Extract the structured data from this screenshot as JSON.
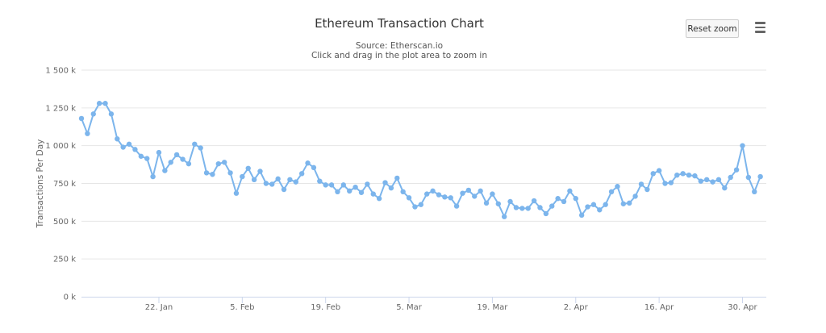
{
  "chart_data": {
    "type": "line",
    "title": "Ethereum Transaction Chart",
    "subtitle_source": "Source: Etherscan.io",
    "subtitle_hint": "Click and drag in the plot area to zoom in",
    "ylabel": "Transactions Per Day",
    "xlabel": "",
    "ylim": [
      0,
      1500000
    ],
    "yticks": [
      {
        "value": 0,
        "label": "0 k"
      },
      {
        "value": 250000,
        "label": "250 k"
      },
      {
        "value": 500000,
        "label": "500 k"
      },
      {
        "value": 750000,
        "label": "750 k"
      },
      {
        "value": 1000000,
        "label": "1 000 k"
      },
      {
        "value": 1250000,
        "label": "1 250 k"
      },
      {
        "value": 1500000,
        "label": "1 500 k"
      }
    ],
    "xlim": [
      "2018-01-09",
      "2018-05-04"
    ],
    "xticks": [
      {
        "date": "2018-01-22",
        "label": "22. Jan"
      },
      {
        "date": "2018-02-05",
        "label": "5. Feb"
      },
      {
        "date": "2018-02-19",
        "label": "19. Feb"
      },
      {
        "date": "2018-03-05",
        "label": "5. Mar"
      },
      {
        "date": "2018-03-19",
        "label": "19. Mar"
      },
      {
        "date": "2018-04-02",
        "label": "2. Apr"
      },
      {
        "date": "2018-04-16",
        "label": "16. Apr"
      },
      {
        "date": "2018-04-30",
        "label": "30. Apr"
      }
    ],
    "grid": true,
    "legend": "none",
    "series": [
      {
        "color": "#7cb5ec",
        "start_date": "2018-01-09",
        "values": [
          1180000,
          1080000,
          1210000,
          1280000,
          1280000,
          1210000,
          1045000,
          990000,
          1010000,
          975000,
          930000,
          915000,
          795000,
          955000,
          835000,
          890000,
          940000,
          910000,
          880000,
          1010000,
          985000,
          820000,
          810000,
          880000,
          890000,
          820000,
          685000,
          795000,
          850000,
          775000,
          830000,
          750000,
          745000,
          780000,
          710000,
          775000,
          760000,
          815000,
          885000,
          855000,
          765000,
          740000,
          740000,
          695000,
          740000,
          700000,
          725000,
          690000,
          745000,
          680000,
          650000,
          755000,
          720000,
          785000,
          695000,
          655000,
          595000,
          610000,
          680000,
          700000,
          675000,
          660000,
          655000,
          600000,
          685000,
          705000,
          665000,
          700000,
          620000,
          680000,
          615000,
          530000,
          630000,
          590000,
          585000,
          585000,
          635000,
          590000,
          550000,
          600000,
          650000,
          630000,
          700000,
          650000,
          540000,
          595000,
          610000,
          575000,
          610000,
          695000,
          730000,
          615000,
          620000,
          665000,
          745000,
          710000,
          815000,
          835000,
          750000,
          755000,
          805000,
          815000,
          805000,
          800000,
          765000,
          775000,
          760000,
          775000,
          720000,
          790000,
          840000,
          1000000,
          790000,
          695000,
          795000
        ]
      }
    ]
  },
  "toolbar": {
    "reset_zoom_label": "Reset zoom",
    "menu_icon": "hamburger-menu-icon"
  }
}
